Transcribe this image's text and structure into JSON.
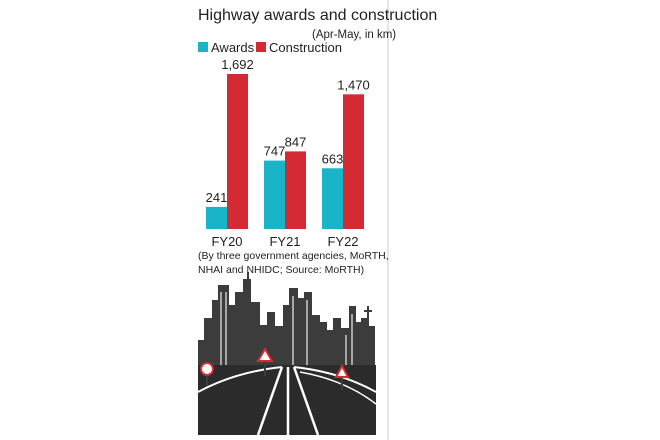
{
  "chart_data": {
    "type": "bar",
    "title": "Highway awards and construction",
    "subtitle": "(Apr-May, in km)",
    "categories": [
      "FY20",
      "FY21",
      "FY22"
    ],
    "series": [
      {
        "name": "Awards",
        "values": [
          241,
          747,
          663
        ],
        "labels": [
          "241",
          "747",
          "663"
        ],
        "color": "#19b4c8"
      },
      {
        "name": "Construction",
        "values": [
          1692,
          847,
          1470
        ],
        "labels": [
          "1,692",
          "847",
          "1,470"
        ],
        "color": "#d42a33"
      }
    ],
    "ylim": [
      0,
      1692
    ],
    "legend_position": "top-left",
    "grid": false,
    "footnote": [
      "(By three government agencies, MoRTH,",
      "NHAI and NHIDC; Source: MoRTH)"
    ]
  },
  "colors": {
    "text": "#231f20",
    "illustration": "#3c3c3c",
    "divider": "#cfcfcf"
  },
  "illustration": {
    "icon": "city-skyline-highway-icon"
  }
}
